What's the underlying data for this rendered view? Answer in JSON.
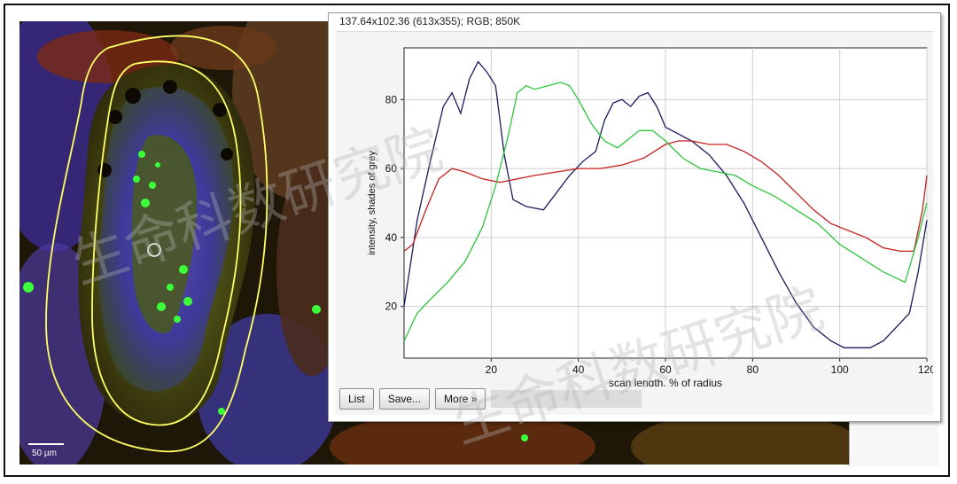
{
  "image": {
    "scale_label": "50 µm"
  },
  "window": {
    "title": "137.64x102.36  (613x355); RGB; 850K",
    "buttons": {
      "list": "List",
      "save": "Save...",
      "more": "More »"
    }
  },
  "watermark": {
    "text": "生命科数研究院"
  },
  "chart_data": {
    "type": "line",
    "xlabel": "scan length, % of radius",
    "ylabel": "intensity, shades of grey",
    "xlim": [
      0,
      120
    ],
    "ylim": [
      5,
      95
    ],
    "xticks": [
      20,
      40,
      60,
      80,
      100,
      120
    ],
    "yticks": [
      20,
      40,
      60,
      80
    ],
    "grid": true,
    "series": [
      {
        "color": "#1a1a5e",
        "x": [
          0,
          3,
          6,
          9,
          11,
          13,
          15,
          17,
          19,
          21,
          23,
          25,
          28,
          32,
          35,
          38,
          41,
          44,
          46,
          48,
          50,
          52,
          54,
          56,
          58,
          60,
          63,
          66,
          70,
          74,
          78,
          82,
          86,
          90,
          94,
          98,
          101,
          104,
          107,
          110,
          113,
          116,
          118,
          120
        ],
        "y": [
          20,
          45,
          62,
          78,
          82,
          76,
          86,
          91,
          88,
          84,
          64,
          51,
          49,
          48,
          53,
          58,
          62,
          65,
          74,
          79,
          80,
          78,
          81,
          82,
          78,
          72,
          70,
          68,
          64,
          58,
          50,
          40,
          30,
          21,
          14,
          10,
          8,
          8,
          8,
          10,
          14,
          18,
          30,
          45
        ]
      },
      {
        "color": "#c42020",
        "x": [
          0,
          2,
          5,
          8,
          11,
          14,
          18,
          22,
          26,
          30,
          35,
          40,
          45,
          50,
          55,
          60,
          63,
          66,
          70,
          74,
          78,
          82,
          86,
          90,
          94,
          98,
          102,
          106,
          110,
          114,
          117,
          119,
          120
        ],
        "y": [
          36,
          38,
          48,
          57,
          60,
          59,
          57,
          56,
          57,
          58,
          59,
          60,
          60,
          61,
          63,
          67,
          68,
          68,
          67,
          67,
          65,
          62,
          58,
          53,
          48,
          44,
          42,
          40,
          37,
          36,
          36,
          48,
          58
        ]
      },
      {
        "color": "#2ec43c",
        "x": [
          0,
          3,
          6,
          10,
          14,
          18,
          21,
          24,
          26,
          28,
          30,
          33,
          36,
          38,
          40,
          43,
          46,
          49,
          51,
          54,
          57,
          60,
          64,
          68,
          72,
          76,
          80,
          85,
          90,
          95,
          100,
          105,
          110,
          115,
          118,
          120
        ],
        "y": [
          10,
          18,
          22,
          27,
          33,
          43,
          55,
          70,
          82,
          84,
          83,
          84,
          85,
          84,
          80,
          73,
          68,
          66,
          68,
          71,
          71,
          68,
          63,
          60,
          59,
          58,
          55,
          52,
          48,
          44,
          38,
          34,
          30,
          27,
          40,
          50
        ]
      }
    ]
  }
}
